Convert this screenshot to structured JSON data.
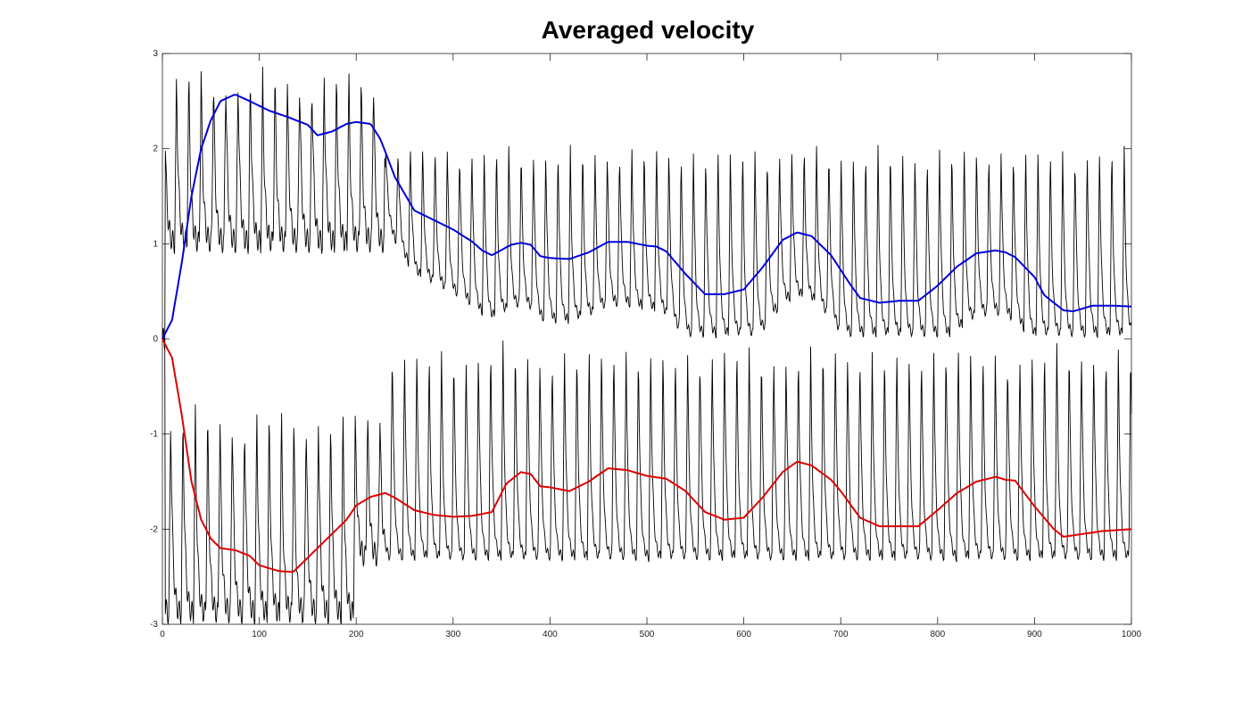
{
  "chart_data": {
    "type": "line",
    "title": "Averaged velocity",
    "xlabel": "",
    "ylabel": "",
    "xlim": [
      0,
      1000
    ],
    "ylim": [
      -3,
      3
    ],
    "xticks": [
      0,
      100,
      200,
      300,
      400,
      500,
      600,
      700,
      800,
      900,
      1000
    ],
    "yticks": [
      -3,
      -2,
      -1,
      0,
      1,
      2,
      3
    ],
    "grid": false,
    "legend": "none",
    "series": [
      {
        "color": "#0000dd",
        "style": "smoothed-upper",
        "x": [
          0,
          10,
          20,
          30,
          40,
          50,
          60,
          75,
          90,
          110,
          130,
          150,
          160,
          175,
          190,
          200,
          215,
          225,
          240,
          260,
          280,
          300,
          320,
          330,
          340,
          360,
          370,
          380,
          390,
          400,
          420,
          440,
          460,
          480,
          500,
          510,
          520,
          540,
          560,
          580,
          600,
          620,
          640,
          655,
          670,
          690,
          710,
          720,
          740,
          760,
          780,
          800,
          820,
          840,
          860,
          870,
          880,
          900,
          910,
          930,
          940,
          960,
          980,
          1000
        ],
        "y": [
          0,
          0.2,
          0.8,
          1.5,
          2.0,
          2.3,
          2.5,
          2.57,
          2.5,
          2.4,
          2.33,
          2.25,
          2.14,
          2.18,
          2.26,
          2.28,
          2.26,
          2.1,
          1.7,
          1.35,
          1.25,
          1.15,
          1.02,
          0.93,
          0.88,
          0.99,
          1.01,
          0.99,
          0.87,
          0.85,
          0.84,
          0.91,
          1.02,
          1.02,
          0.98,
          0.97,
          0.92,
          0.68,
          0.47,
          0.47,
          0.52,
          0.76,
          1.04,
          1.12,
          1.08,
          0.88,
          0.57,
          0.43,
          0.38,
          0.4,
          0.4,
          0.56,
          0.76,
          0.9,
          0.93,
          0.91,
          0.86,
          0.65,
          0.46,
          0.3,
          0.29,
          0.35,
          0.35,
          0.34
        ]
      },
      {
        "color": "#dd0000",
        "style": "smoothed-lower",
        "x": [
          0,
          10,
          20,
          30,
          40,
          50,
          60,
          75,
          90,
          100,
          120,
          135,
          145,
          160,
          175,
          190,
          200,
          215,
          230,
          240,
          260,
          280,
          300,
          320,
          340,
          355,
          370,
          380,
          390,
          400,
          420,
          440,
          460,
          480,
          500,
          520,
          540,
          560,
          580,
          600,
          620,
          640,
          655,
          670,
          690,
          700,
          720,
          740,
          760,
          780,
          800,
          820,
          840,
          860,
          870,
          880,
          900,
          920,
          930,
          950,
          970,
          1000
        ],
        "y": [
          0,
          -0.2,
          -0.8,
          -1.5,
          -1.9,
          -2.1,
          -2.2,
          -2.22,
          -2.28,
          -2.38,
          -2.44,
          -2.45,
          -2.35,
          -2.2,
          -2.05,
          -1.9,
          -1.75,
          -1.66,
          -1.62,
          -1.67,
          -1.8,
          -1.85,
          -1.87,
          -1.86,
          -1.82,
          -1.52,
          -1.4,
          -1.42,
          -1.55,
          -1.56,
          -1.6,
          -1.5,
          -1.36,
          -1.38,
          -1.44,
          -1.47,
          -1.6,
          -1.82,
          -1.9,
          -1.88,
          -1.66,
          -1.4,
          -1.29,
          -1.33,
          -1.48,
          -1.6,
          -1.88,
          -1.97,
          -1.97,
          -1.97,
          -1.8,
          -1.62,
          -1.5,
          -1.45,
          -1.48,
          -1.49,
          -1.76,
          -2.0,
          -2.08,
          -2.05,
          -2.02,
          -2.0
        ]
      }
    ]
  }
}
